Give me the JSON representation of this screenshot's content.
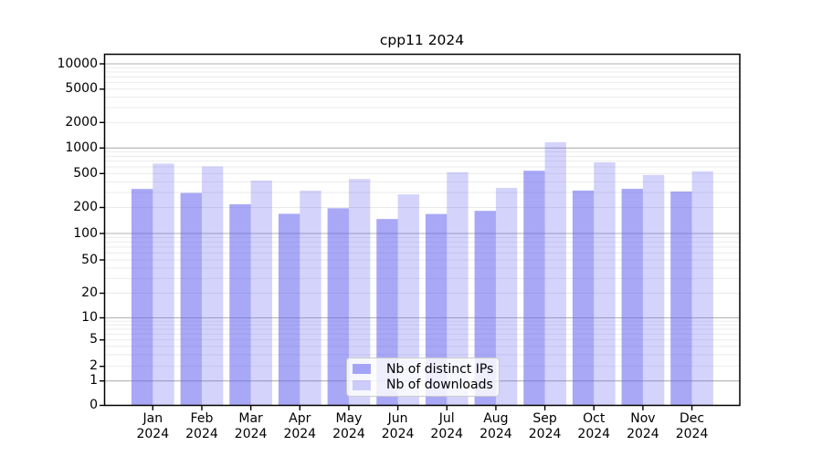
{
  "title": "cpp11 2024",
  "colors": {
    "bar_ips": "rgba(97,97,239,0.55)",
    "bar_downloads": "rgba(97,97,239,0.28)",
    "grid_major": "#b1b1b1",
    "grid_minor": "#e9e9e9",
    "axis": "#000000",
    "legend_border": "#cbcbcb",
    "legend_bg": "rgba(255,255,255,0.8)"
  },
  "legend": {
    "items": [
      {
        "label": "Nb of distinct IPs",
        "color_key": "bar_ips"
      },
      {
        "label": "Nb of downloads",
        "color_key": "bar_downloads"
      }
    ]
  },
  "chart_data": {
    "type": "bar",
    "title": "cpp11 2024",
    "categories": [
      "Jan",
      "Feb",
      "Mar",
      "Apr",
      "May",
      "Jun",
      "Jul",
      "Aug",
      "Sep",
      "Oct",
      "Nov",
      "Dec"
    ],
    "x_year": "2024",
    "series": [
      {
        "name": "Nb of distinct IPs",
        "values": [
          330,
          296,
          218,
          169,
          196,
          147,
          168,
          183,
          540,
          316,
          331,
          308
        ]
      },
      {
        "name": "Nb of downloads",
        "values": [
          655,
          607,
          414,
          315,
          432,
          285,
          520,
          340,
          1170,
          678,
          481,
          532
        ]
      }
    ],
    "yscale": "symlog",
    "y_ticks": [
      0,
      1,
      2,
      5,
      10,
      20,
      50,
      100,
      200,
      500,
      1000,
      2000,
      5000,
      10000
    ],
    "ylim": [
      0,
      13000
    ],
    "grid": true,
    "legend_position": "lower center"
  }
}
